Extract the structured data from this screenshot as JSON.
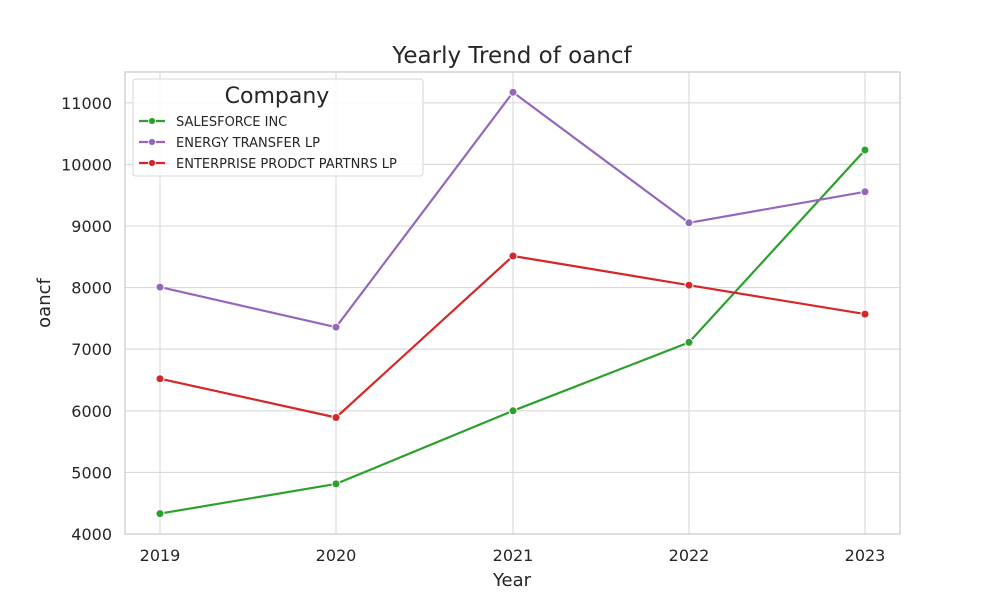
{
  "chart_data": {
    "type": "line",
    "title": "Yearly Trend of oancf",
    "xlabel": "Year",
    "ylabel": "oancf",
    "x": [
      "2019",
      "2020",
      "2021",
      "2022",
      "2023"
    ],
    "ylim": [
      4000,
      11500
    ],
    "yticks": [
      4000,
      5000,
      6000,
      7000,
      8000,
      9000,
      10000,
      11000
    ],
    "grid": true,
    "legend": {
      "title": "Company",
      "placement": "top-left"
    },
    "series": [
      {
        "name": "SALESFORCE INC",
        "color": "#2ca02c",
        "values": [
          4331,
          4813,
          6000,
          7111,
          10234
        ]
      },
      {
        "name": "ENERGY TRANSFER LP",
        "color": "#9467bd",
        "values": [
          8008,
          7357,
          11170,
          9052,
          9556
        ]
      },
      {
        "name": "ENTERPRISE PRODCT PARTNRS LP",
        "color": "#d62728",
        "values": [
          6521,
          5891,
          8513,
          8039,
          7569
        ]
      }
    ]
  }
}
